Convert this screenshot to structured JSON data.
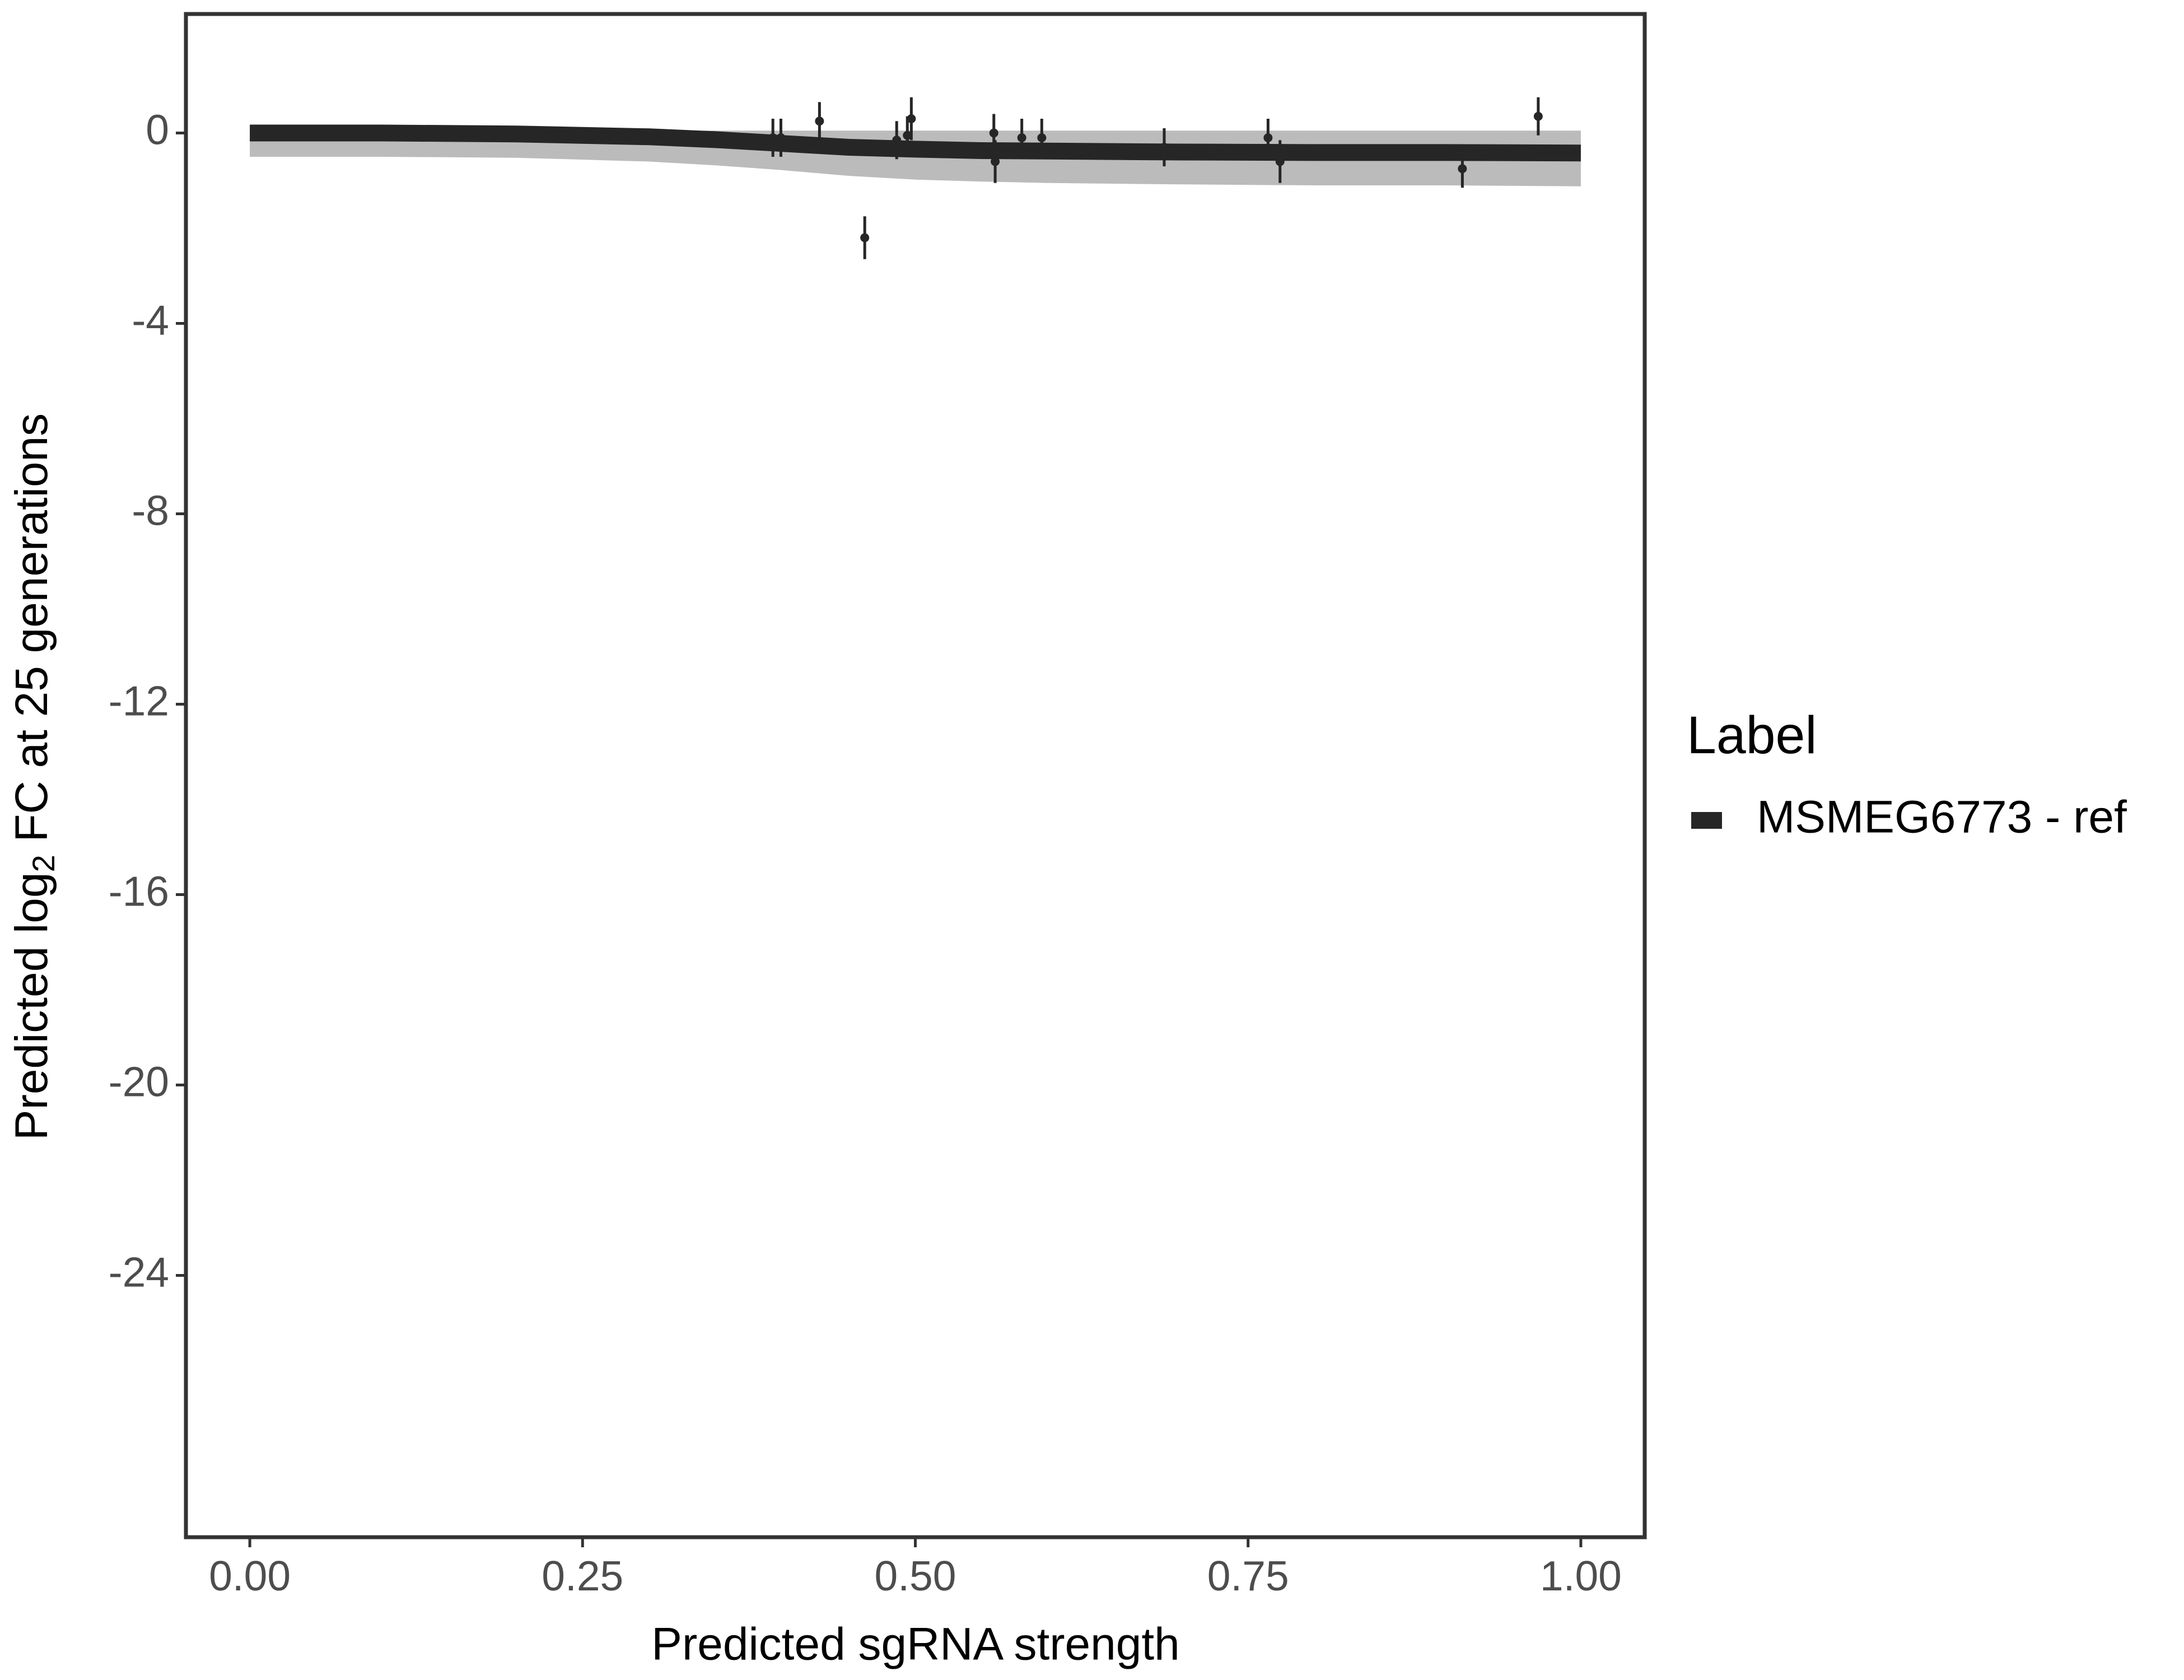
{
  "chart_data": {
    "type": "scatter",
    "x_label": "Predicted sgRNA strength",
    "y_label_prefix": "Predicted  log",
    "y_label_sub": "2",
    "y_label_suffix": " FC at 25 generations",
    "legend_title": "Label",
    "legend_position": "right",
    "xlim": [
      -0.048,
      1.048
    ],
    "ylim": [
      -29.5,
      2.5
    ],
    "xticks": [
      {
        "value": 0,
        "label": "0.00"
      },
      {
        "value": 0.25,
        "label": "0.25"
      },
      {
        "value": 0.5,
        "label": "0.50"
      },
      {
        "value": 0.75,
        "label": "0.75"
      },
      {
        "value": 1,
        "label": "1.00"
      }
    ],
    "yticks": [
      0,
      -4,
      -8,
      -12,
      -16,
      -20,
      -24
    ],
    "series": [
      {
        "name": "MSMEG6773 - ref",
        "color": "#262626",
        "x": [
          0.393,
          0.399,
          0.428,
          0.462,
          0.486,
          0.494,
          0.497,
          0.559,
          0.56,
          0.58,
          0.595,
          0.687,
          0.765,
          0.774,
          0.911,
          0.968
        ],
        "values": [
          -0.1,
          -0.1,
          0.25,
          -2.2,
          -0.15,
          -0.05,
          0.3,
          0.0,
          -0.6,
          -0.1,
          -0.1,
          -0.3,
          -0.1,
          -0.6,
          -0.75,
          0.35
        ],
        "errors": [
          0.4,
          0.4,
          0.4,
          0.45,
          0.4,
          0.4,
          0.45,
          0.4,
          0.45,
          0.4,
          0.4,
          0.4,
          0.4,
          0.45,
          0.4,
          0.4
        ]
      }
    ],
    "fit": {
      "x": [
        0,
        0.1,
        0.2,
        0.3,
        0.35,
        0.4,
        0.45,
        0.5,
        0.55,
        0.6,
        0.7,
        0.8,
        0.9,
        1.0
      ],
      "values": [
        0,
        0,
        -0.02,
        -0.08,
        -0.14,
        -0.22,
        -0.3,
        -0.34,
        -0.37,
        -0.38,
        -0.4,
        -0.41,
        -0.41,
        -0.42
      ],
      "lower": [
        -0.5,
        -0.5,
        -0.52,
        -0.6,
        -0.68,
        -0.78,
        -0.9,
        -0.98,
        -1.02,
        -1.05,
        -1.08,
        -1.1,
        -1.1,
        -1.12
      ],
      "upper": [
        0.05,
        0.05,
        0.05,
        0.05,
        0.05,
        0.05,
        0.05,
        0.05,
        0.05,
        0.05,
        0.05,
        0.05,
        0.05,
        0.05
      ]
    }
  }
}
